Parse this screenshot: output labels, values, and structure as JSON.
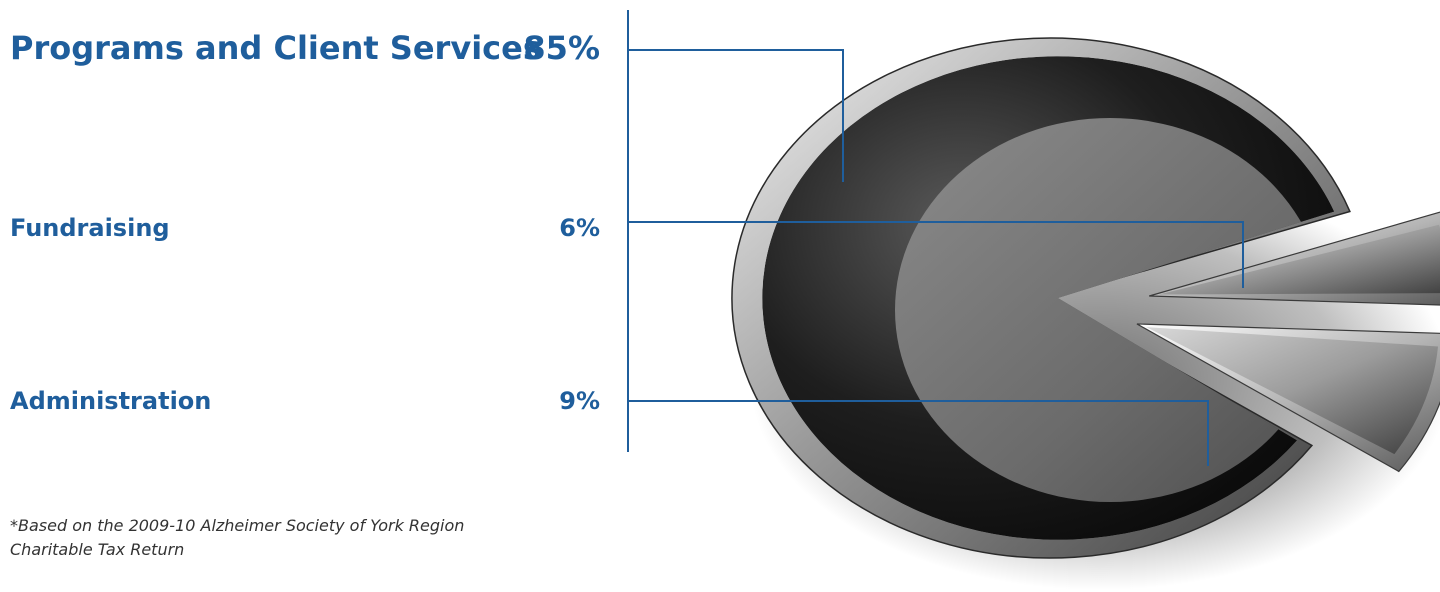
{
  "chart_data": {
    "type": "pie",
    "categories": [
      "Programs and Client Services",
      "Fundraising",
      "Administration"
    ],
    "labels_text": [
      "Programs and Client Services",
      "Fundraising",
      "Administration"
    ],
    "values": [
      85,
      6,
      9
    ],
    "value_labels": [
      "85%",
      "6%",
      "9%"
    ],
    "legend": "left",
    "exploded": [
      "Fundraising",
      "Administration"
    ]
  },
  "colors": {
    "text": "#1f5e9c",
    "leader": "#1f5e9c"
  },
  "footnote": {
    "line1": "*Based on the 2009-10 Alzheimer Society of York Region",
    "line2": "Charitable Tax Return"
  }
}
